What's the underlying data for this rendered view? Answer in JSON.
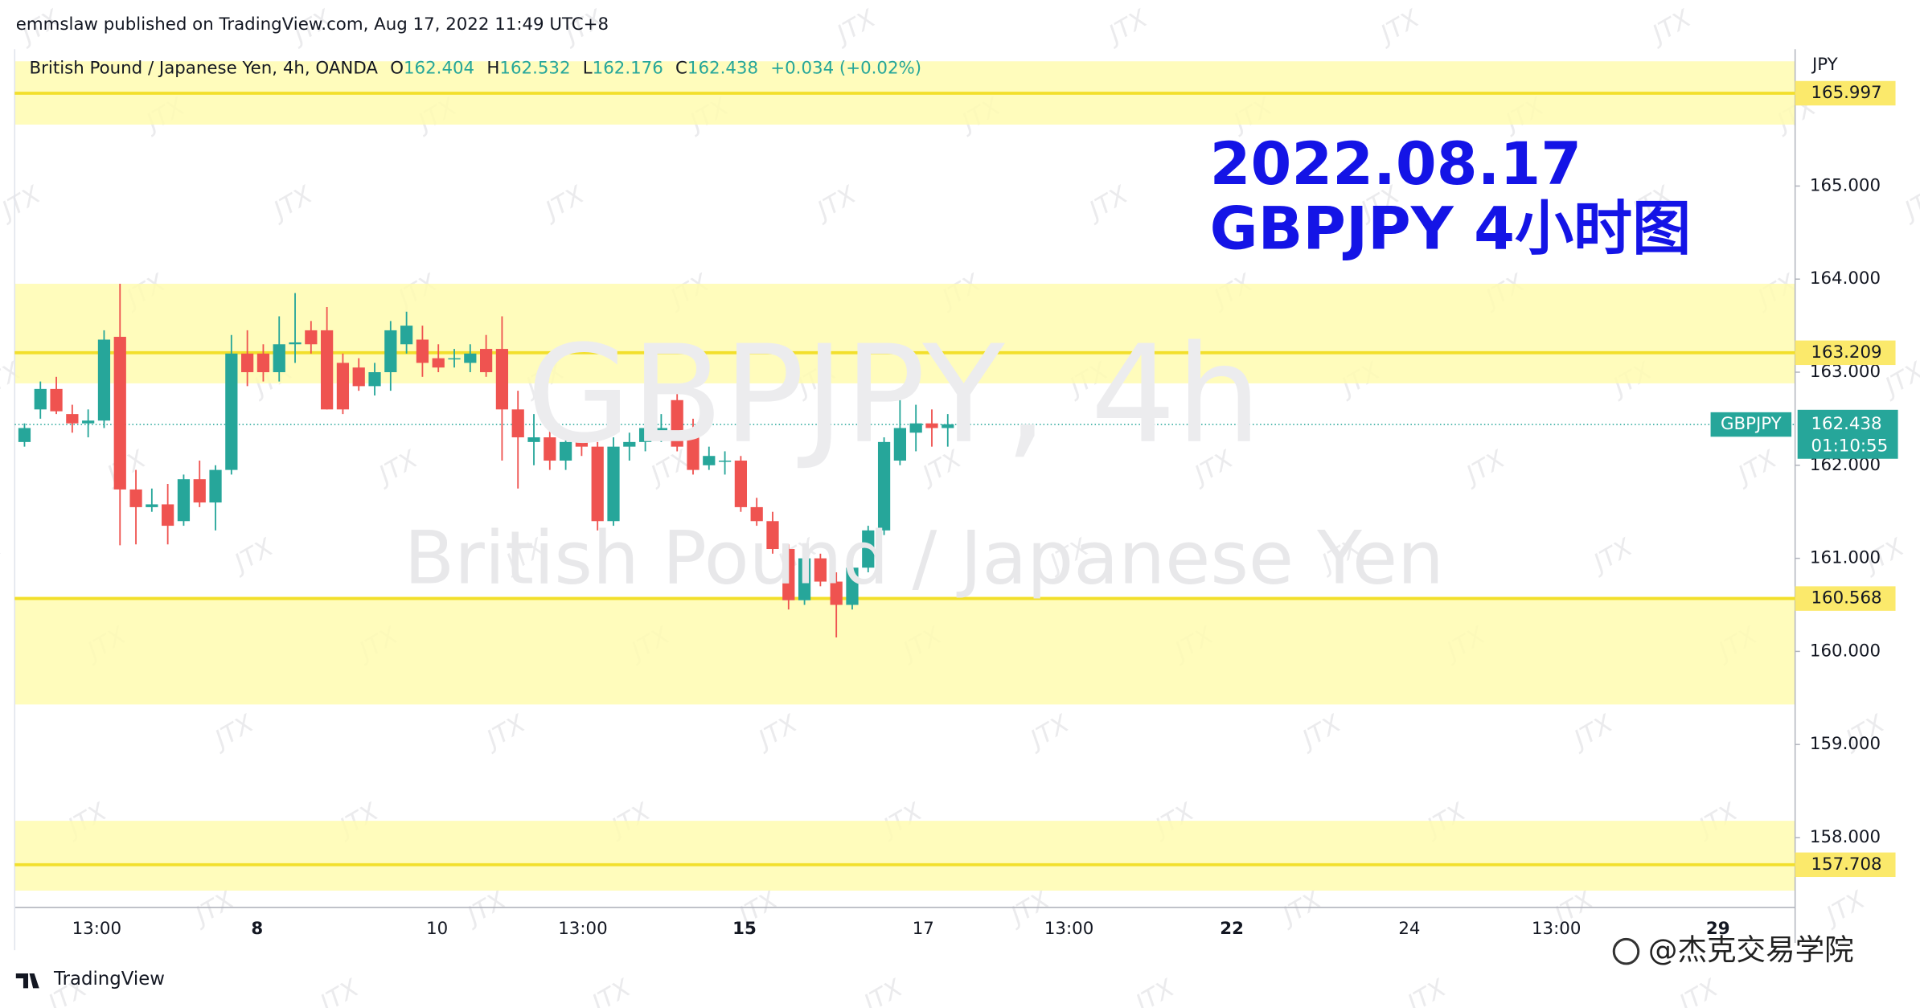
{
  "header": "emmslaw published on TradingView.com, Aug 17, 2022 11:49 UTC+8",
  "footer_logo": "TradingView",
  "footer_author": "@杰克交易学院",
  "watermark_text": "JTX",
  "chart_data": {
    "type": "candlestick",
    "symbol_watermark": "GBPJPY, 4h",
    "name_watermark": "British Pound / Japanese Yen",
    "legend": {
      "symbol": "British Pound / Japanese Yen, 4h, OANDA",
      "ohlc": [
        {
          "label": "O",
          "value": 162.404
        },
        {
          "label": "H",
          "value": 162.532
        },
        {
          "label": "L",
          "value": 162.176
        },
        {
          "label": "C",
          "value": 162.438
        }
      ],
      "change": "+0.034 (+0.02%)"
    },
    "annotation": [
      "2022.08.17",
      "GBPJPY 4小时图"
    ],
    "currency": "JPY",
    "up_color": "#26a69a",
    "down_color": "#ef5350",
    "ylim": [
      157.25,
      166.47
    ],
    "yticks": [
      {
        "value": 158,
        "label": "158.000"
      },
      {
        "value": 159,
        "label": "159.000"
      },
      {
        "value": 160,
        "label": "160.000"
      },
      {
        "value": 161,
        "label": "161.000"
      },
      {
        "value": 162,
        "label": "162.000"
      },
      {
        "value": 163,
        "label": "163.000"
      },
      {
        "value": 164,
        "label": "164.000"
      },
      {
        "value": 165,
        "label": "165.000"
      }
    ],
    "x_labels": [
      "13:00",
      "8",
      "10",
      "13:00",
      "15",
      "17",
      "13:00",
      "22",
      "24",
      "13:00",
      "29"
    ],
    "levels": [
      165.997,
      163.209,
      160.568,
      157.708
    ],
    "zones": [
      [
        165.66,
        166.34
      ],
      [
        162.88,
        163.95
      ],
      [
        159.43,
        160.59
      ],
      [
        157.43,
        158.18
      ]
    ],
    "last_price": {
      "name": "GBPJPY",
      "value": 162.438,
      "countdown": "01:10:55"
    },
    "candles": [
      [
        162.25,
        162.45,
        162.2,
        162.4
      ],
      [
        162.6,
        162.9,
        162.5,
        162.82
      ],
      [
        162.82,
        162.95,
        162.55,
        162.58
      ],
      [
        162.55,
        162.65,
        162.35,
        162.45
      ],
      [
        162.45,
        162.6,
        162.3,
        162.48
      ],
      [
        162.48,
        163.45,
        162.4,
        163.35
      ],
      [
        163.38,
        163.95,
        161.14,
        161.74
      ],
      [
        161.74,
        161.95,
        161.15,
        161.55
      ],
      [
        161.55,
        161.75,
        161.5,
        161.58
      ],
      [
        161.58,
        161.8,
        161.15,
        161.35
      ],
      [
        161.4,
        161.9,
        161.35,
        161.85
      ],
      [
        161.85,
        162.05,
        161.55,
        161.6
      ],
      [
        161.6,
        162.0,
        161.3,
        161.95
      ],
      [
        161.95,
        163.4,
        161.9,
        163.2
      ],
      [
        163.2,
        163.45,
        162.85,
        163.0
      ],
      [
        163.2,
        163.3,
        162.9,
        163.0
      ],
      [
        163.0,
        163.6,
        162.9,
        163.3
      ],
      [
        163.3,
        163.85,
        163.1,
        163.32
      ],
      [
        163.45,
        163.55,
        163.2,
        163.3
      ],
      [
        163.45,
        163.7,
        162.6,
        162.6
      ],
      [
        163.1,
        163.2,
        162.55,
        162.6
      ],
      [
        163.05,
        163.15,
        162.8,
        162.85
      ],
      [
        162.85,
        163.1,
        162.75,
        163.0
      ],
      [
        163.0,
        163.55,
        162.8,
        163.45
      ],
      [
        163.3,
        163.65,
        163.2,
        163.5
      ],
      [
        163.35,
        163.5,
        162.95,
        163.1
      ],
      [
        163.15,
        163.3,
        163.0,
        163.05
      ],
      [
        163.15,
        163.25,
        163.05,
        163.15
      ],
      [
        163.1,
        163.3,
        163.0,
        163.2
      ],
      [
        163.25,
        163.4,
        162.95,
        163.0
      ],
      [
        163.25,
        163.6,
        162.05,
        162.6
      ],
      [
        162.6,
        162.8,
        161.75,
        162.3
      ],
      [
        162.25,
        162.55,
        162.0,
        162.3
      ],
      [
        162.3,
        162.4,
        161.95,
        162.05
      ],
      [
        162.05,
        162.3,
        161.95,
        162.25
      ],
      [
        162.25,
        162.35,
        162.1,
        162.2
      ],
      [
        162.2,
        162.25,
        161.3,
        161.4
      ],
      [
        161.4,
        162.3,
        161.35,
        162.2
      ],
      [
        162.2,
        162.35,
        162.05,
        162.25
      ],
      [
        162.25,
        162.45,
        162.15,
        162.4
      ],
      [
        162.35,
        162.55,
        162.25,
        162.4
      ],
      [
        162.7,
        162.8,
        162.15,
        162.2
      ],
      [
        162.3,
        162.5,
        161.9,
        161.95
      ],
      [
        162.0,
        162.2,
        161.95,
        162.1
      ],
      [
        162.05,
        162.15,
        161.9,
        162.05
      ],
      [
        162.05,
        162.1,
        161.5,
        161.55
      ],
      [
        161.55,
        161.65,
        161.35,
        161.4
      ],
      [
        161.4,
        161.5,
        161.05,
        161.1
      ],
      [
        161.1,
        161.15,
        160.45,
        160.55
      ],
      [
        160.55,
        161.1,
        160.5,
        161.0
      ],
      [
        161.0,
        161.05,
        160.7,
        160.75
      ],
      [
        160.75,
        160.85,
        160.15,
        160.5
      ],
      [
        160.5,
        161.0,
        160.45,
        160.9
      ],
      [
        160.9,
        161.35,
        160.85,
        161.3
      ],
      [
        161.3,
        162.3,
        161.25,
        162.25
      ],
      [
        162.05,
        162.7,
        162.0,
        162.4
      ],
      [
        162.35,
        162.65,
        162.15,
        162.45
      ],
      [
        162.45,
        162.6,
        162.2,
        162.4
      ],
      [
        162.4,
        162.55,
        162.2,
        162.44
      ]
    ]
  }
}
